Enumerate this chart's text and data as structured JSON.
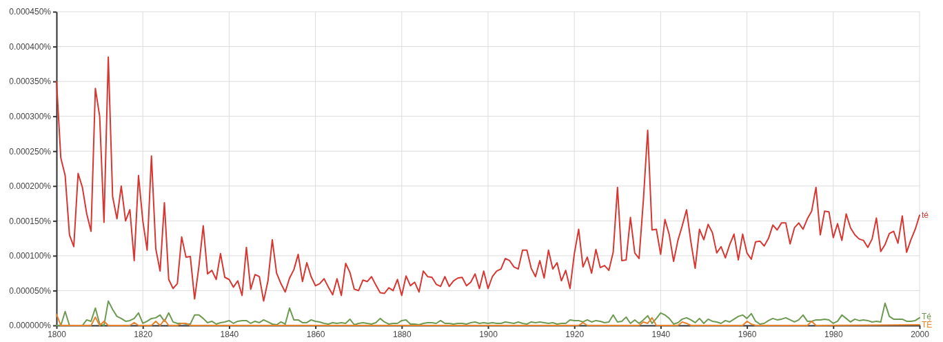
{
  "chart_data": {
    "type": "line",
    "x": [
      1800,
      1801,
      1802,
      1803,
      1804,
      1805,
      1806,
      1807,
      1808,
      1809,
      1810,
      1811,
      1812,
      1813,
      1814,
      1815,
      1816,
      1817,
      1818,
      1819,
      1820,
      1821,
      1822,
      1823,
      1824,
      1825,
      1826,
      1827,
      1828,
      1829,
      1830,
      1831,
      1832,
      1833,
      1834,
      1835,
      1836,
      1837,
      1838,
      1839,
      1840,
      1841,
      1842,
      1843,
      1844,
      1845,
      1846,
      1847,
      1848,
      1849,
      1850,
      1851,
      1852,
      1853,
      1854,
      1855,
      1856,
      1857,
      1858,
      1859,
      1860,
      1861,
      1862,
      1863,
      1864,
      1865,
      1866,
      1867,
      1868,
      1869,
      1870,
      1871,
      1872,
      1873,
      1874,
      1875,
      1876,
      1877,
      1878,
      1879,
      1880,
      1881,
      1882,
      1883,
      1884,
      1885,
      1886,
      1887,
      1888,
      1889,
      1890,
      1891,
      1892,
      1893,
      1894,
      1895,
      1896,
      1897,
      1898,
      1899,
      1900,
      1901,
      1902,
      1903,
      1904,
      1905,
      1906,
      1907,
      1908,
      1909,
      1910,
      1911,
      1912,
      1913,
      1914,
      1915,
      1916,
      1917,
      1918,
      1919,
      1920,
      1921,
      1922,
      1923,
      1924,
      1925,
      1926,
      1927,
      1928,
      1929,
      1930,
      1931,
      1932,
      1933,
      1934,
      1935,
      1936,
      1937,
      1938,
      1939,
      1940,
      1941,
      1942,
      1943,
      1944,
      1945,
      1946,
      1947,
      1948,
      1949,
      1950,
      1951,
      1952,
      1953,
      1954,
      1955,
      1956,
      1957,
      1958,
      1959,
      1960,
      1961,
      1962,
      1963,
      1964,
      1965,
      1966,
      1967,
      1968,
      1969,
      1970,
      1971,
      1972,
      1973,
      1974,
      1975,
      1976,
      1977,
      1978,
      1979,
      1980,
      1981,
      1982,
      1983,
      1984,
      1985,
      1986,
      1987,
      1988,
      1989,
      1990,
      1991,
      1992,
      1993,
      1994,
      1995,
      1996,
      1997,
      1998,
      1999,
      2000
    ],
    "series": [
      {
        "name": "té",
        "color": "#d73631",
        "values": [
          0.00035,
          0.00024,
          0.000215,
          0.00013,
          0.000113,
          0.000218,
          0.000198,
          0.00016,
          0.000135,
          0.00034,
          0.0003,
          0.000148,
          0.000385,
          0.000185,
          0.000153,
          0.0002,
          0.00015,
          0.000166,
          9.3e-05,
          0.000215,
          0.00015,
          0.000108,
          0.000243,
          0.00011,
          7.8e-05,
          0.000176,
          6.6e-05,
          5.3e-05,
          6e-05,
          0.000127,
          9.8e-05,
          9.9e-05,
          3.8e-05,
          8.5e-05,
          0.000143,
          7.4e-05,
          7.9e-05,
          6.6e-05,
          0.000103,
          6.9e-05,
          6.6e-05,
          5.5e-05,
          6.4e-05,
          4.3e-05,
          0.000112,
          5.2e-05,
          7.3e-05,
          7e-05,
          3.5e-05,
          6.4e-05,
          0.000123,
          7.5e-05,
          6e-05,
          4.8e-05,
          6.8e-05,
          8e-05,
          0.000102,
          6.3e-05,
          9e-05,
          7e-05,
          5.7e-05,
          6e-05,
          6.7e-05,
          5.5e-05,
          4.4e-05,
          6.7e-05,
          4.3e-05,
          8.9e-05,
          7.6e-05,
          5.2e-05,
          5e-05,
          6.5e-05,
          6.3e-05,
          7e-05,
          5.8e-05,
          4.7e-05,
          4.6e-05,
          5.4e-05,
          5e-05,
          6.6e-05,
          4.3e-05,
          7.1e-05,
          5.7e-05,
          6.2e-05,
          4.8e-05,
          7.8e-05,
          7e-05,
          6.9e-05,
          5.9e-05,
          5.6e-05,
          7e-05,
          5.6e-05,
          6.4e-05,
          6.8e-05,
          6.9e-05,
          5.7e-05,
          6.2e-05,
          7.4e-05,
          5.3e-05,
          7.8e-05,
          5.3e-05,
          7e-05,
          7.8e-05,
          8.1e-05,
          9.6e-05,
          9.3e-05,
          8.4e-05,
          8.1e-05,
          0.000108,
          0.000108,
          8.2e-05,
          7e-05,
          9.3e-05,
          6.8e-05,
          0.000108,
          8.1e-05,
          9e-05,
          6.4e-05,
          7.9e-05,
          5.3e-05,
          0.000103,
          0.000138,
          8.4e-05,
          9.8e-05,
          7.5e-05,
          0.000109,
          8.3e-05,
          8.6e-05,
          7.9e-05,
          0.000105,
          0.000198,
          9.3e-05,
          9.4e-05,
          0.000155,
          0.000104,
          9.6e-05,
          0.00018,
          0.00028,
          0.000137,
          0.000138,
          0.000102,
          0.000152,
          0.00013,
          9.2e-05,
          0.000122,
          0.000143,
          0.000166,
          0.00012,
          8.2e-05,
          0.000138,
          0.000123,
          0.000145,
          0.000133,
          0.000104,
          0.000113,
          9.7e-05,
          0.000116,
          0.000131,
          9.4e-05,
          0.000131,
          0.000104,
          9.5e-05,
          0.00012,
          0.000121,
          0.000114,
          0.000125,
          0.000144,
          0.000137,
          0.000147,
          0.000147,
          0.000117,
          0.00014,
          0.000147,
          0.000138,
          0.000153,
          0.000164,
          0.000198,
          0.00013,
          0.000164,
          0.000163,
          0.000126,
          0.000146,
          0.000122,
          0.00016,
          0.00014,
          0.00013,
          0.000124,
          0.000122,
          0.000112,
          0.000124,
          0.000154,
          0.000106,
          0.000116,
          0.000132,
          0.000135,
          0.000118,
          0.000157,
          0.000105,
          0.000123,
          0.000138,
          0.000158
        ]
      },
      {
        "name": "Té",
        "color": "#6b9a50",
        "values": [
          0,
          0,
          2e-05,
          0,
          0,
          0,
          0,
          8e-06,
          6e-06,
          2.5e-05,
          2e-06,
          0,
          3.5e-05,
          2.3e-05,
          1.3e-05,
          1e-05,
          6e-06,
          7e-06,
          1e-05,
          1.8e-05,
          3e-06,
          6e-06,
          1e-05,
          1.1e-05,
          1.5e-05,
          6e-06,
          1.8e-05,
          5e-06,
          3e-06,
          3e-06,
          2e-06,
          2e-06,
          1.5e-05,
          1.5e-05,
          1e-05,
          4e-06,
          6e-06,
          2e-06,
          4e-06,
          5e-06,
          7e-06,
          3e-06,
          6e-06,
          7e-06,
          7e-06,
          3e-06,
          6e-06,
          4e-06,
          8e-06,
          5e-06,
          2e-06,
          1e-06,
          5e-06,
          2e-06,
          2.5e-05,
          8e-06,
          8e-06,
          4e-06,
          4e-06,
          8e-06,
          6e-06,
          5e-06,
          3e-06,
          2e-06,
          4e-06,
          3e-06,
          4e-06,
          3e-06,
          9e-06,
          1e-06,
          3e-06,
          4e-06,
          3e-06,
          2e-06,
          4e-06,
          1e-05,
          5e-06,
          2e-06,
          3e-06,
          3e-06,
          7e-06,
          8e-06,
          2e-06,
          2e-06,
          1e-06,
          3e-06,
          4e-06,
          4e-06,
          3e-06,
          7e-06,
          3e-06,
          3e-06,
          2e-06,
          3e-06,
          3e-06,
          2e-06,
          4e-06,
          5e-06,
          3e-06,
          4e-06,
          3e-06,
          4e-06,
          3e-06,
          3e-06,
          5e-06,
          4e-06,
          3e-06,
          5e-06,
          3e-06,
          2e-06,
          5e-06,
          4e-06,
          5e-06,
          4e-06,
          3e-06,
          4e-06,
          2e-06,
          3e-06,
          3e-06,
          8e-06,
          7e-06,
          7e-06,
          5e-06,
          8e-06,
          5e-06,
          7e-06,
          6e-06,
          4e-06,
          5e-06,
          1.5e-05,
          5e-06,
          6e-06,
          1.2e-05,
          3e-06,
          8e-06,
          3e-06,
          8e-06,
          1.4e-05,
          3e-06,
          1e-05,
          1.8e-05,
          1.5e-05,
          1e-05,
          2e-06,
          4e-06,
          9e-06,
          1.1e-05,
          8e-06,
          4e-06,
          1e-05,
          3e-06,
          9e-06,
          6e-06,
          5e-06,
          3e-06,
          7e-06,
          5e-06,
          9e-06,
          1.3e-05,
          1.5e-05,
          1e-05,
          1.7e-05,
          6e-06,
          2e-06,
          3e-06,
          7e-06,
          1e-05,
          8e-06,
          9e-06,
          1.1e-05,
          8e-06,
          5e-06,
          8e-06,
          1.5e-05,
          6e-06,
          6e-06,
          8e-06,
          8e-06,
          9e-06,
          8e-06,
          3e-06,
          6e-06,
          1.5e-05,
          1e-05,
          5e-06,
          9e-06,
          7e-06,
          8e-06,
          7e-06,
          5e-06,
          6e-06,
          5e-06,
          3.2e-05,
          1.3e-05,
          9e-06,
          9e-06,
          9e-06,
          6e-06,
          6e-06,
          7e-06,
          1.1e-05
        ]
      },
      {
        "name": "TÉ",
        "color": "#e8812b",
        "x": [
          1800,
          1801,
          1808,
          1809,
          1810,
          1811,
          1812,
          1817,
          1818,
          1819,
          1822,
          1823,
          1824,
          1825,
          1826,
          1828,
          1829,
          1830,
          1831,
          1921,
          1922,
          1923,
          1935,
          1936,
          1937,
          1938,
          1939,
          1944,
          1945,
          1946,
          1947,
          1959,
          1960,
          1961,
          1962,
          1974,
          1975,
          1976,
          2000
        ],
        "values": [
          1.6e-05,
          0,
          0,
          1.2e-05,
          0,
          6e-06,
          0,
          0,
          4e-06,
          0,
          0,
          6e-06,
          0,
          8e-06,
          0,
          0,
          3e-06,
          3e-06,
          0,
          0,
          4e-06,
          0,
          0,
          5e-06,
          3e-06,
          1.1e-05,
          0,
          0,
          5e-06,
          3e-06,
          0,
          0,
          6e-06,
          2e-06,
          0,
          0,
          6e-06,
          0,
          1e-06
        ]
      }
    ],
    "xlim": [
      1800,
      2000
    ],
    "xticks": [
      1800,
      1820,
      1840,
      1860,
      1880,
      1900,
      1920,
      1940,
      1960,
      1980,
      2000
    ],
    "ylim": [
      0,
      0.00045
    ],
    "yticks": [
      {
        "value": 0,
        "label": "0.000000%"
      },
      {
        "value": 5e-05,
        "label": "0.000050%"
      },
      {
        "value": 0.0001,
        "label": "0.000100%"
      },
      {
        "value": 0.00015,
        "label": "0.000150%"
      },
      {
        "value": 0.0002,
        "label": "0.000200%"
      },
      {
        "value": 0.00025,
        "label": "0.000250%"
      },
      {
        "value": 0.0003,
        "label": "0.000300%"
      },
      {
        "value": 0.00035,
        "label": "0.000350%"
      },
      {
        "value": 0.0004,
        "label": "0.000400%"
      },
      {
        "value": 0.00045,
        "label": "0.000450%"
      }
    ],
    "grid": true,
    "legend": false,
    "marker": "none",
    "line_style": "solid"
  }
}
